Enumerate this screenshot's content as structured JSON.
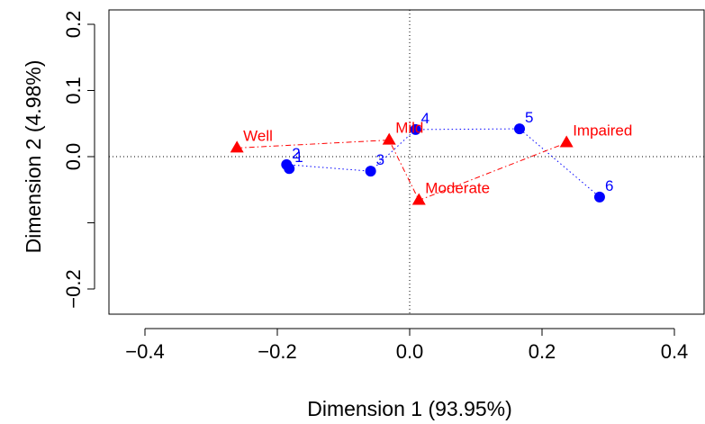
{
  "chart_data": {
    "type": "scatter",
    "title": "",
    "xlabel": "Dimension 1 (93.95%)",
    "ylabel": "Dimension 2 (4.98%)",
    "xlim": [
      -0.4,
      0.4
    ],
    "ylim": [
      -0.2,
      0.2
    ],
    "x_ticks": [
      -0.4,
      -0.2,
      0.0,
      0.2,
      0.4
    ],
    "x_tick_labels": [
      "−0.4",
      "−0.2",
      "0.0",
      "0.2",
      "0.4"
    ],
    "y_ticks": [
      -0.2,
      -0.1,
      0.0,
      0.1,
      0.2
    ],
    "y_tick_labels": [
      "−0.2",
      "",
      "0.0",
      "0.1",
      "0.2"
    ],
    "reference_lines": {
      "x": 0,
      "y": 0,
      "style": "dotted"
    },
    "grid": false,
    "series": [
      {
        "color": "#0000ff",
        "marker": "circle",
        "line_style": "dotted",
        "points": [
          {
            "label": "1",
            "x": -0.182,
            "y": -0.018
          },
          {
            "label": "2",
            "x": -0.186,
            "y": -0.012
          },
          {
            "label": "3",
            "x": -0.059,
            "y": -0.022
          },
          {
            "label": "4",
            "x": 0.009,
            "y": 0.041
          },
          {
            "label": "5",
            "x": 0.166,
            "y": 0.042
          },
          {
            "label": "6",
            "x": 0.287,
            "y": -0.061
          }
        ]
      },
      {
        "color": "#ff0000",
        "marker": "triangle",
        "line_style": "dashdot",
        "points": [
          {
            "label": "Well",
            "x": -0.261,
            "y": 0.013
          },
          {
            "label": "Mild",
            "x": -0.031,
            "y": 0.025
          },
          {
            "label": "Moderate",
            "x": 0.014,
            "y": -0.066
          },
          {
            "label": "Impaired",
            "x": 0.237,
            "y": 0.021
          }
        ]
      }
    ]
  }
}
